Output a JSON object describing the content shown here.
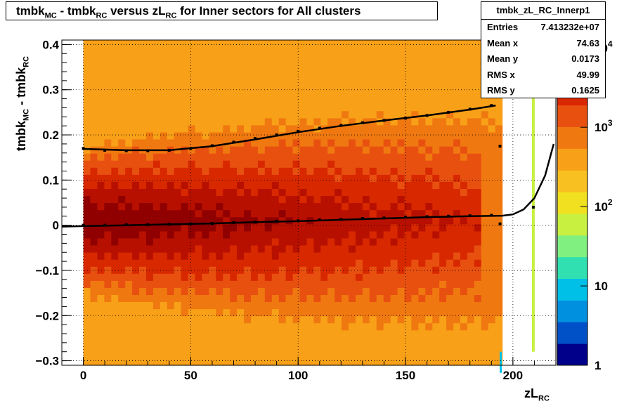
{
  "title": {
    "parts": [
      "tmbk",
      "MC",
      " - tmbk",
      "RC",
      " versus zL",
      "RC",
      " for Inner sectors for All clusters"
    ]
  },
  "stats": {
    "name": "tmbk_zL_RC_Innerp1",
    "rows": [
      {
        "label": "Entries",
        "value": "7.413232e+07"
      },
      {
        "label": "Mean x",
        "value": "74.63"
      },
      {
        "label": "Mean y",
        "value": "0.0173"
      },
      {
        "label": "RMS x",
        "value": "49.99"
      },
      {
        "label": "RMS y",
        "value": "0.1625"
      }
    ]
  },
  "chart_data": {
    "type": "heatmap",
    "xlabel": {
      "main": "zL",
      "sub": "RC"
    },
    "ylabel": {
      "main1": "tmbk",
      "sub1": "MC",
      "main2": " - tmbk",
      "sub2": "RC"
    },
    "xlim": [
      -10,
      220
    ],
    "ylim": [
      -0.31,
      0.41
    ],
    "x_ticks": [
      "0",
      "50",
      "100",
      "150",
      "200"
    ],
    "x_tick_values": [
      0,
      50,
      100,
      150,
      200
    ],
    "y_ticks": [
      "-0.3",
      "-0.2",
      "-0.1",
      "0",
      "0.1",
      "0.2",
      "0.3",
      "0.4"
    ],
    "y_tick_values": [
      -0.3,
      -0.2,
      -0.1,
      0,
      0.1,
      0.2,
      0.3,
      0.4
    ],
    "grid": true,
    "z_scale": "log",
    "z_ticks": [
      "1",
      "10",
      "10^2",
      "10^3",
      "10^4"
    ],
    "z_tick_values": [
      1,
      10,
      100,
      1000,
      10000
    ],
    "colors": [
      "#00008b",
      "#0050c8",
      "#0090e0",
      "#00c0e8",
      "#30e0b0",
      "#80f080",
      "#c8f040",
      "#f0e020",
      "#f8c020",
      "#f8a018",
      "#f07810",
      "#e85010",
      "#d82800",
      "#b81000",
      "#900000"
    ],
    "data_x_range": [
      0,
      195
    ],
    "extra_strips": [
      {
        "x": 209.5
      }
    ],
    "series": [
      {
        "name": "rms",
        "x": [
          0,
          10,
          20,
          30,
          40,
          50,
          60,
          70,
          80,
          90,
          100,
          110,
          120,
          130,
          140,
          150,
          160,
          170,
          180,
          190,
          194
        ],
        "y": [
          0.17,
          0.166,
          0.165,
          0.165,
          0.166,
          0.17,
          0.176,
          0.184,
          0.192,
          0.2,
          0.208,
          0.215,
          0.221,
          0.227,
          0.232,
          0.237,
          0.243,
          0.25,
          0.257,
          0.265,
          0.175
        ]
      },
      {
        "name": "mean",
        "x": [
          0,
          10,
          20,
          30,
          40,
          50,
          60,
          70,
          80,
          90,
          100,
          110,
          120,
          130,
          140,
          150,
          160,
          170,
          180,
          190,
          194,
          209.5
        ],
        "y": [
          0.0,
          0.0,
          0.001,
          0.001,
          0.002,
          0.003,
          0.004,
          0.006,
          0.007,
          0.009,
          0.01,
          0.012,
          0.013,
          0.015,
          0.016,
          0.018,
          0.019,
          0.02,
          0.021,
          0.022,
          0.003,
          0.04
        ]
      }
    ],
    "fit": {
      "x": [
        -10,
        0,
        20,
        40,
        60,
        80,
        100,
        120,
        140,
        160,
        180,
        195,
        200,
        205,
        210,
        215,
        219
      ],
      "y": [
        -0.003,
        -0.002,
        0.0,
        0.002,
        0.004,
        0.007,
        0.009,
        0.012,
        0.015,
        0.018,
        0.02,
        0.021,
        0.024,
        0.035,
        0.06,
        0.11,
        0.18
      ]
    },
    "fit_rms": {
      "x": [
        0,
        20,
        40,
        60,
        80,
        100,
        120,
        140,
        160,
        180,
        192
      ],
      "y": [
        0.169,
        0.166,
        0.166,
        0.175,
        0.19,
        0.206,
        0.22,
        0.232,
        0.243,
        0.256,
        0.265
      ]
    }
  }
}
